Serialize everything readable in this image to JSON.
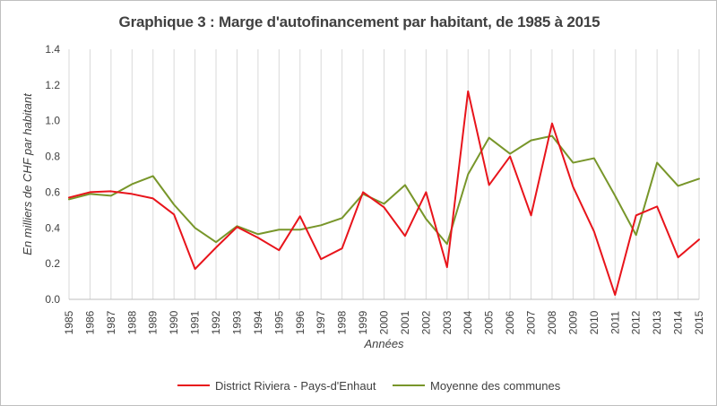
{
  "chart_data": {
    "type": "line",
    "title": "Graphique 3 : Marge d'autofinancement par habitant, de 1985 à 2015",
    "xlabel": "Années",
    "ylabel": "En milliers de CHF par habitant",
    "ylim": [
      0,
      1.4
    ],
    "yticks": [
      "0.0",
      "0.2",
      "0.4",
      "0.6",
      "0.8",
      "1.0",
      "1.2",
      "1.4"
    ],
    "grid": "vertical",
    "legend_position": "bottom",
    "categories": [
      "1985",
      "1986",
      "1987",
      "1988",
      "1989",
      "1990",
      "1991",
      "1992",
      "1993",
      "1994",
      "1995",
      "1996",
      "1997",
      "1998",
      "1999",
      "2000",
      "2001",
      "2002",
      "2003",
      "2004",
      "2005",
      "2006",
      "2007",
      "2008",
      "2009",
      "2010",
      "2011",
      "2012",
      "2013",
      "2014",
      "2015"
    ],
    "series": [
      {
        "name": "District Riviera - Pays-d'Enhaut",
        "color": "#e8141b",
        "values": [
          0.57,
          0.6,
          0.605,
          0.59,
          0.565,
          0.475,
          0.17,
          0.29,
          0.405,
          0.345,
          0.275,
          0.465,
          0.225,
          0.285,
          0.6,
          0.515,
          0.355,
          0.6,
          0.18,
          1.165,
          0.64,
          0.8,
          0.47,
          0.985,
          0.63,
          0.38,
          0.025,
          0.47,
          0.52,
          0.235,
          0.335
        ]
      },
      {
        "name": "Moyenne des communes",
        "color": "#78962a",
        "values": [
          0.56,
          0.59,
          0.58,
          0.645,
          0.69,
          0.53,
          0.4,
          0.32,
          0.41,
          0.365,
          0.39,
          0.39,
          0.415,
          0.455,
          0.59,
          0.535,
          0.64,
          0.45,
          0.31,
          0.7,
          0.905,
          0.815,
          0.89,
          0.915,
          0.765,
          0.79,
          0.58,
          0.36,
          0.765,
          0.635,
          0.675
        ]
      }
    ]
  }
}
